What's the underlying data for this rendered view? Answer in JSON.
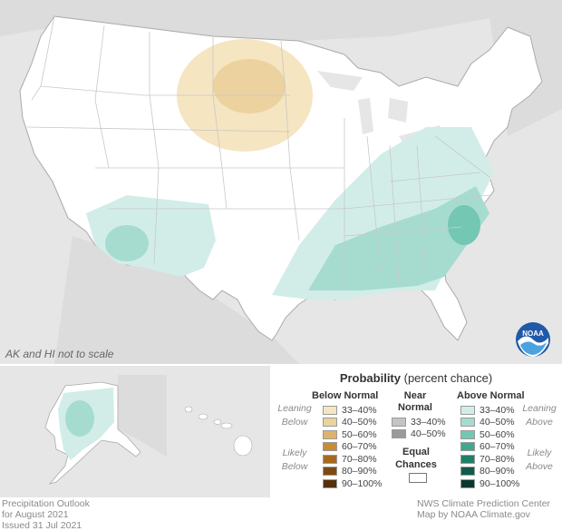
{
  "map": {
    "title_line1": "Precipitation Outlook",
    "title_line2": "for August 2021",
    "issued": "Issued 31 Jul 2021",
    "credit_line1": "NWS Climate Prediction Center",
    "credit_line2": "Map by NOAA Climate.gov",
    "scale_note": "AK and HI not to scale",
    "logo_text": "NOAA"
  },
  "legend": {
    "title_bold": "Probability",
    "title_rest": " (percent chance)",
    "below_head": "Below Normal",
    "near_head_1": "Near",
    "near_head_2": "Normal",
    "above_head": "Above Normal",
    "leaning_below": [
      "Leaning",
      "Below"
    ],
    "likely_below": [
      "Likely",
      "Below"
    ],
    "leaning_above": [
      "Leaning",
      "Above"
    ],
    "likely_above": [
      "Likely",
      "Above"
    ],
    "equal_1": "Equal",
    "equal_2": "Chances",
    "below_items": [
      {
        "label": "33–40%",
        "color": "#f5e5c1"
      },
      {
        "label": "40–50%",
        "color": "#ebd29f"
      },
      {
        "label": "50–60%",
        "color": "#ddb36b"
      },
      {
        "label": "60–70%",
        "color": "#c98b34"
      },
      {
        "label": "70–80%",
        "color": "#a8691c"
      },
      {
        "label": "80–90%",
        "color": "#7e4a12"
      },
      {
        "label": "90–100%",
        "color": "#55300a"
      }
    ],
    "near_items": [
      {
        "label": "33–40%",
        "color": "#c4c4c4"
      },
      {
        "label": "40–50%",
        "color": "#9a9a9a"
      }
    ],
    "above_items": [
      {
        "label": "33–40%",
        "color": "#d2ede8"
      },
      {
        "label": "40–50%",
        "color": "#a6dccf"
      },
      {
        "label": "50–60%",
        "color": "#74c7b2"
      },
      {
        "label": "60–70%",
        "color": "#3fa88f"
      },
      {
        "label": "70–80%",
        "color": "#1f8069"
      },
      {
        "label": "80–90%",
        "color": "#0f5c4b"
      },
      {
        "label": "90–100%",
        "color": "#07392e"
      }
    ]
  }
}
